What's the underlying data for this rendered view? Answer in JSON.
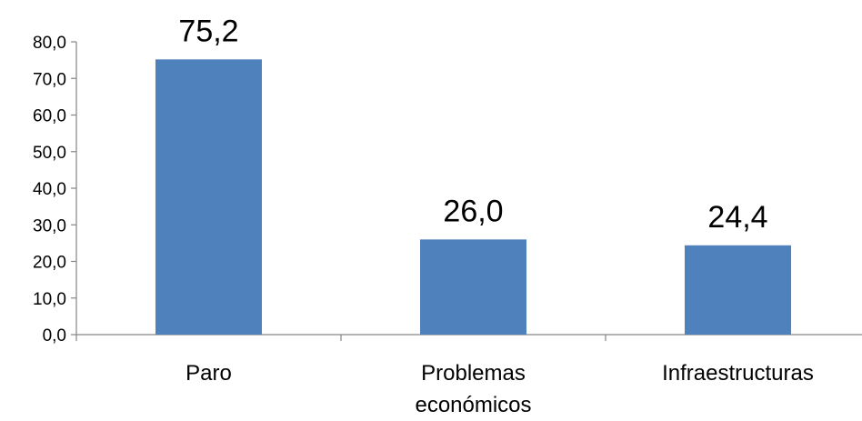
{
  "chart_data": {
    "type": "bar",
    "title": "",
    "xlabel": "",
    "ylabel": "",
    "categories": [
      "Paro",
      "Problemas económicos",
      "Infraestructuras"
    ],
    "category_lines": [
      [
        "Paro"
      ],
      [
        "Problemas",
        "económicos"
      ],
      [
        "Infraestructuras"
      ]
    ],
    "values": [
      75.2,
      26.0,
      24.4
    ],
    "value_labels": [
      "75,2",
      "26,0",
      "24,4"
    ],
    "ylim": [
      0,
      80
    ],
    "yticks": [
      0,
      10,
      20,
      30,
      40,
      50,
      60,
      70,
      80
    ],
    "ytick_labels": [
      "0,0",
      "10,0",
      "20,0",
      "30,0",
      "40,0",
      "50,0",
      "60,0",
      "70,0",
      "80,0"
    ],
    "grid": false,
    "legend": "none",
    "colors": {
      "bar": "#4F81BD",
      "axis": "#868686",
      "text": "#000000"
    }
  }
}
